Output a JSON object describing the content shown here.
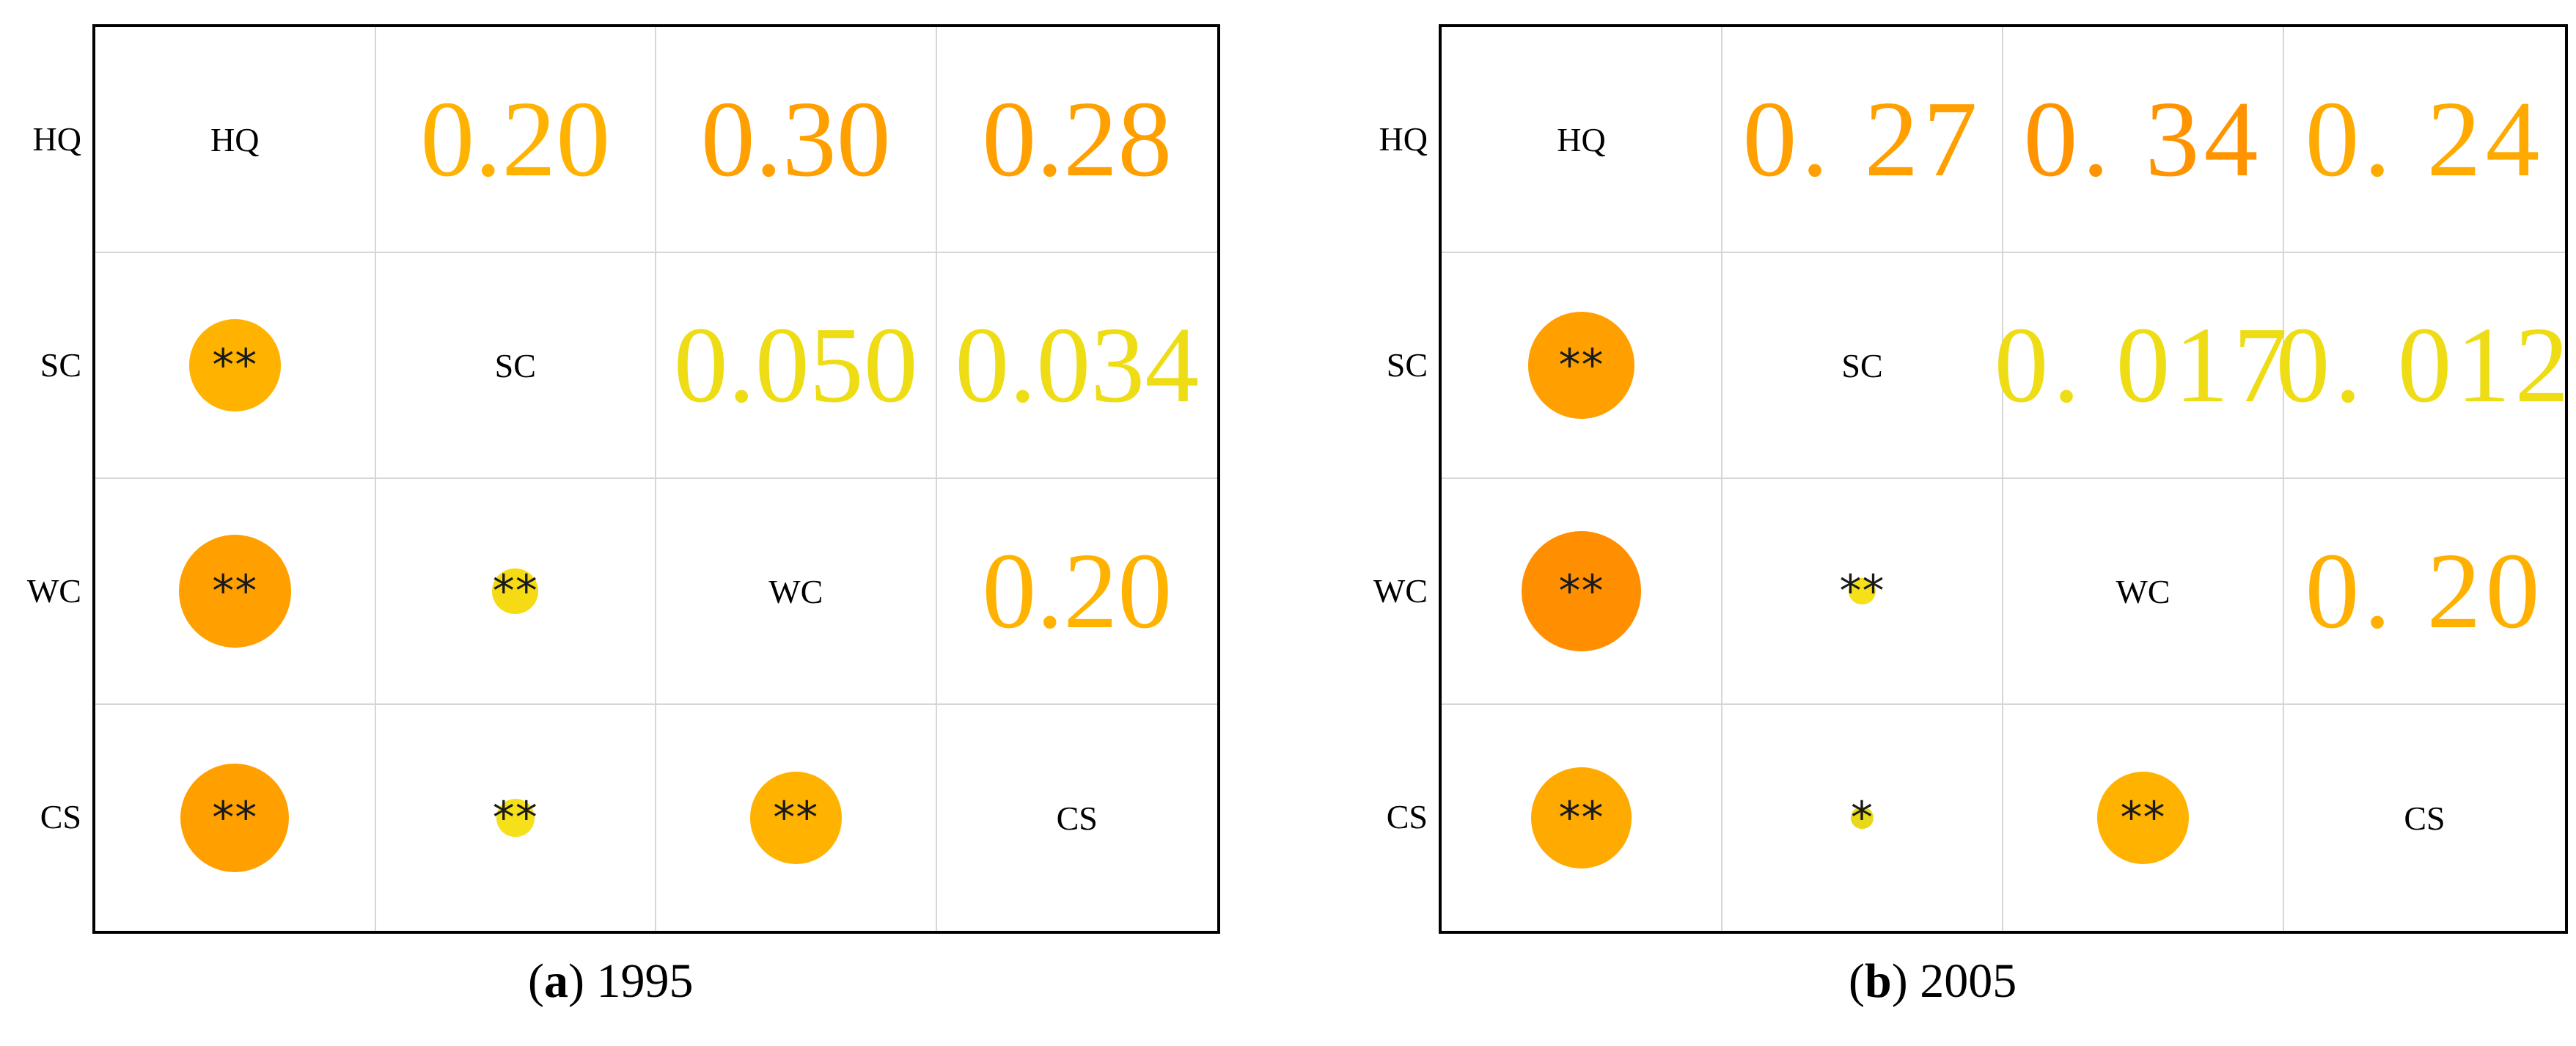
{
  "chart_data": [
    {
      "type": "heatmap",
      "caption_letter": "a",
      "caption_year": "1995",
      "variables": [
        "HQ",
        "SC",
        "WC",
        "CS"
      ],
      "upper_triangle_labels": [
        [
          "HQ",
          "0.20",
          "0.30",
          "0.28"
        ],
        [
          "",
          "SC",
          "0.050",
          "0.034"
        ],
        [
          "",
          "",
          "WC",
          "0.20"
        ],
        [
          "",
          "",
          "",
          "CS"
        ]
      ],
      "lower_triangle": [
        {
          "row": "SC",
          "col": "HQ",
          "significance": "**",
          "value": 0.2,
          "color": "#FFB300"
        },
        {
          "row": "WC",
          "col": "HQ",
          "significance": "**",
          "value": 0.3,
          "color": "#FFA000"
        },
        {
          "row": "WC",
          "col": "SC",
          "significance": "**",
          "value": 0.05,
          "color": "#F5DA14"
        },
        {
          "row": "CS",
          "col": "HQ",
          "significance": "**",
          "value": 0.28,
          "color": "#FFA000"
        },
        {
          "row": "CS",
          "col": "SC",
          "significance": "**",
          "value": 0.034,
          "color": "#F5E019"
        },
        {
          "row": "CS",
          "col": "WC",
          "significance": "**",
          "value": 0.2,
          "color": "#FFB300"
        }
      ],
      "colors": {
        "0.20": "#FFB300",
        "0.30": "#FFA000",
        "0.28": "#FFA000",
        "0.050": "#EEDC14",
        "0.034": "#EEDC14"
      }
    },
    {
      "type": "heatmap",
      "caption_letter": "b",
      "caption_year": "2005",
      "variables": [
        "HQ",
        "SC",
        "WC",
        "CS"
      ],
      "upper_triangle_labels": [
        [
          "HQ",
          "0. 27",
          "0. 34",
          "0. 24"
        ],
        [
          "",
          "SC",
          "0. 017",
          "0. 012"
        ],
        [
          "",
          "",
          "WC",
          "0. 20"
        ],
        [
          "",
          "",
          "",
          "CS"
        ]
      ],
      "lower_triangle": [
        {
          "row": "SC",
          "col": "HQ",
          "significance": "**",
          "value": 0.27,
          "color": "#FFA000"
        },
        {
          "row": "WC",
          "col": "HQ",
          "significance": "**",
          "value": 0.34,
          "color": "#FF8F00"
        },
        {
          "row": "WC",
          "col": "SC",
          "significance": "**",
          "value": 0.017,
          "color": "#F5E019"
        },
        {
          "row": "CS",
          "col": "HQ",
          "significance": "**",
          "value": 0.24,
          "color": "#FFAA00"
        },
        {
          "row": "CS",
          "col": "SC",
          "significance": "*",
          "value": 0.012,
          "color": "#E8D81A"
        },
        {
          "row": "CS",
          "col": "WC",
          "significance": "**",
          "value": 0.2,
          "color": "#FFB300"
        }
      ],
      "colors": {
        "0. 27": "#FFA000",
        "0. 34": "#FF9400",
        "0. 24": "#FFAA00",
        "0. 017": "#EEDC14",
        "0. 012": "#EEDC14",
        "0. 20": "#FFB000"
      }
    }
  ]
}
